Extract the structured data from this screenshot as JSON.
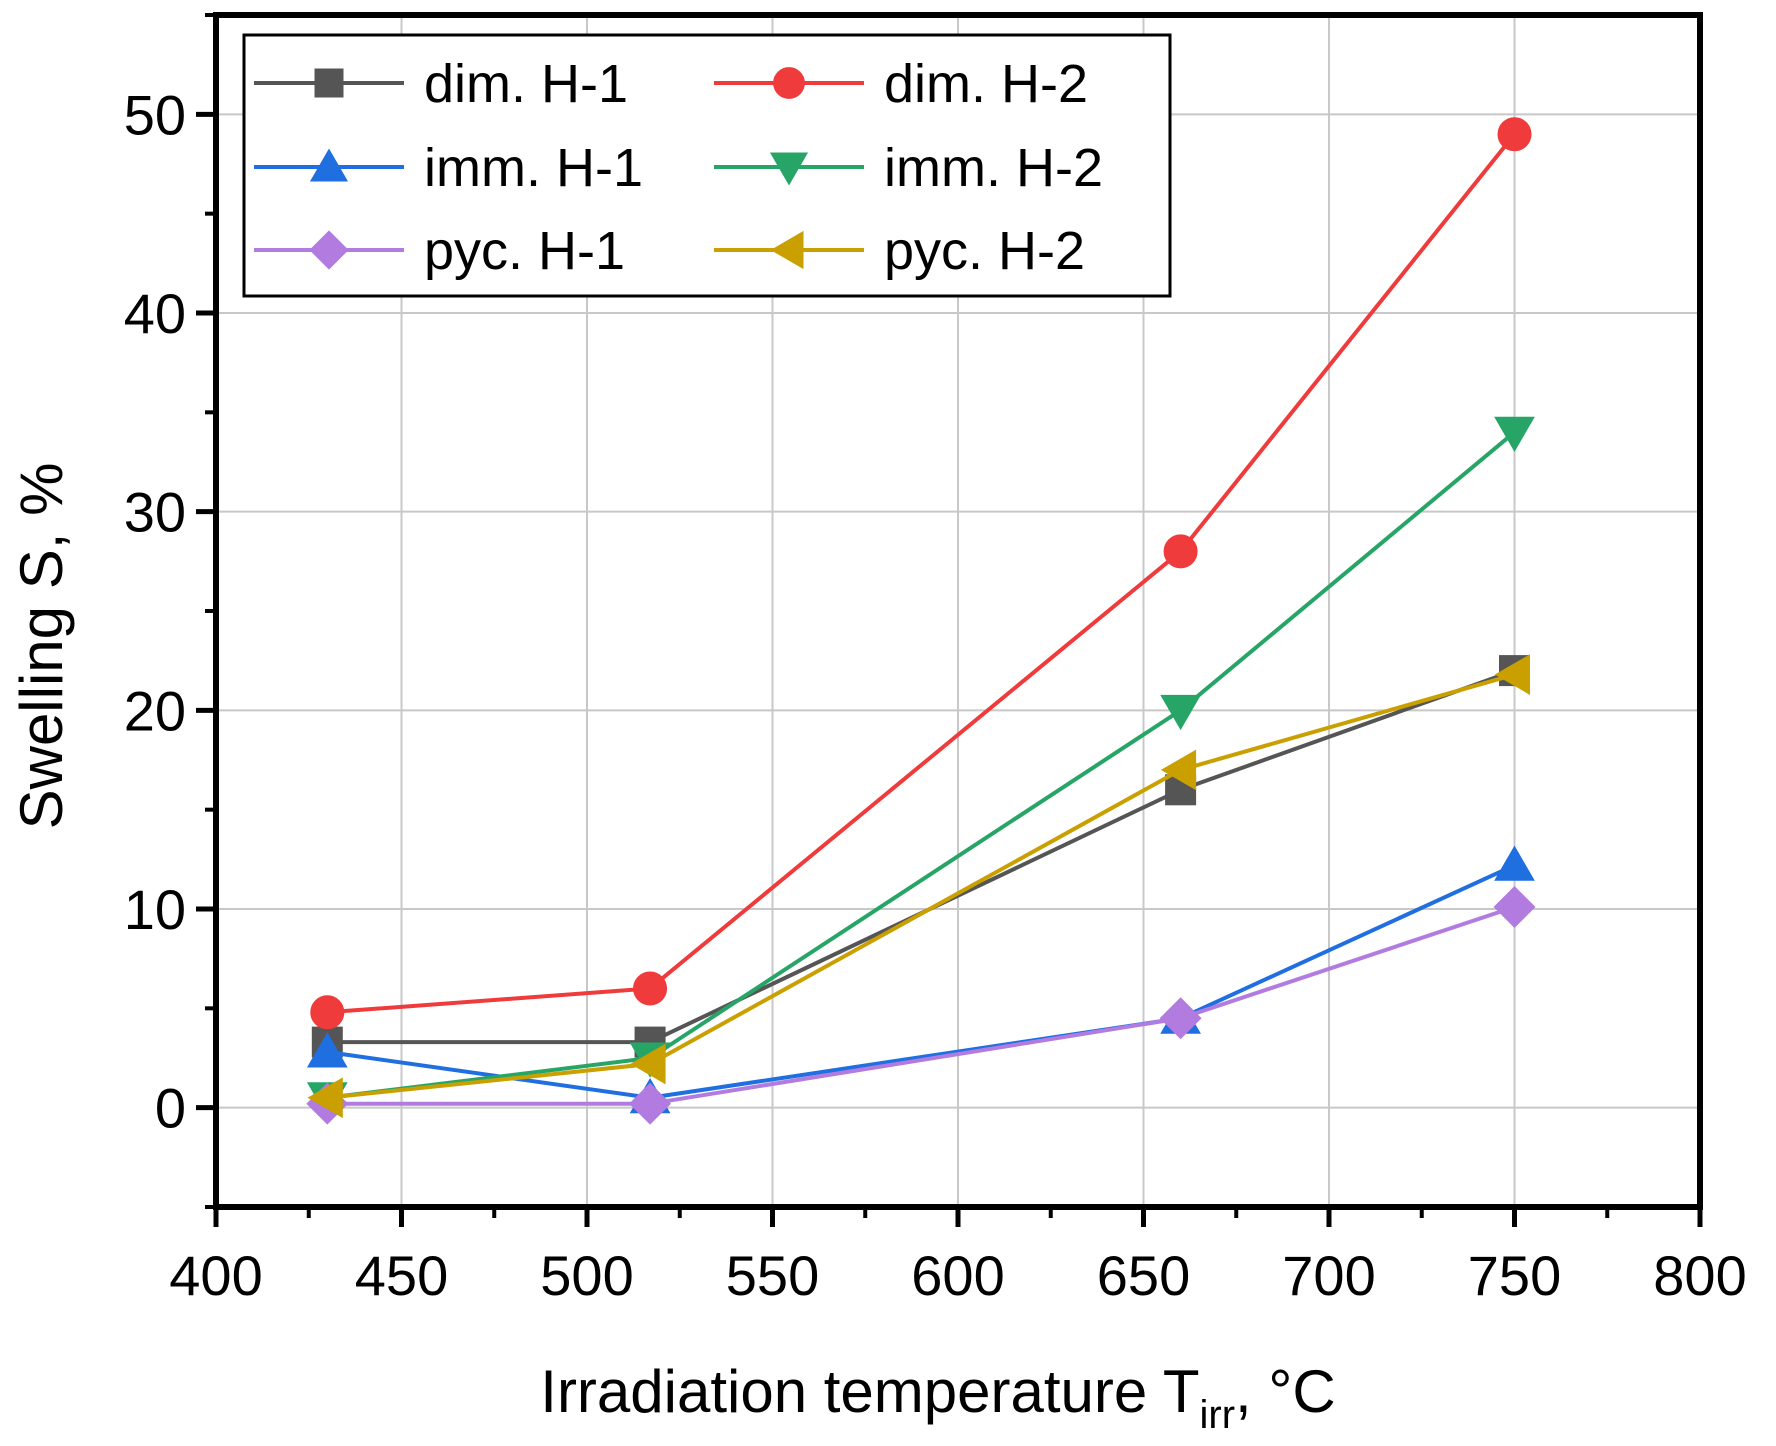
{
  "chart_data": {
    "type": "line",
    "title": "",
    "xlabel": {
      "main": "Irradiation temperature T",
      "sub": "irr",
      "suffix": ", °C"
    },
    "ylabel": "Swelling S, %",
    "xlim": [
      400,
      800
    ],
    "ylim": [
      -5,
      55
    ],
    "xticks": [
      400,
      450,
      500,
      550,
      600,
      650,
      700,
      750,
      800
    ],
    "yticks": [
      0,
      10,
      20,
      30,
      40,
      50
    ],
    "grid": true,
    "legend_position": "top-left",
    "series": [
      {
        "name": "dim. H-1",
        "color": "#555555",
        "marker": "square",
        "x": [
          430,
          517,
          660,
          750
        ],
        "y": [
          3.3,
          3.3,
          16.0,
          22.0
        ]
      },
      {
        "name": "dim. H-2",
        "color": "#ef3b3b",
        "marker": "circle",
        "x": [
          430,
          517,
          660,
          750
        ],
        "y": [
          4.8,
          6.0,
          28.0,
          49.0
        ]
      },
      {
        "name": "imm. H-1",
        "color": "#1f6fe0",
        "marker": "triangle-up",
        "x": [
          430,
          517,
          660,
          750
        ],
        "y": [
          2.8,
          0.5,
          4.5,
          12.2
        ]
      },
      {
        "name": "imm. H-2",
        "color": "#27a566",
        "marker": "triangle-down",
        "x": [
          430,
          517,
          660,
          750
        ],
        "y": [
          0.5,
          2.5,
          20.0,
          34.0
        ]
      },
      {
        "name": "pyc. H-1",
        "color": "#b27be0",
        "marker": "diamond",
        "x": [
          430,
          517,
          660,
          750
        ],
        "y": [
          0.2,
          0.2,
          4.5,
          10.1
        ]
      },
      {
        "name": "pyc. H-2",
        "color": "#c9a000",
        "marker": "triangle-left",
        "x": [
          430,
          517,
          660,
          750
        ],
        "y": [
          0.5,
          2.2,
          17.0,
          21.8
        ]
      }
    ]
  }
}
